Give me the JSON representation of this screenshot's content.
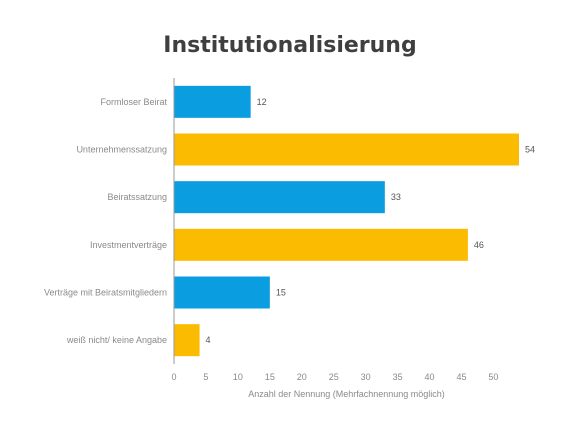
{
  "chart_data": {
    "type": "bar",
    "orientation": "horizontal",
    "title": "Institutionalisierung",
    "xlabel": "Anzahl der Nennung (Mehrfachnennung möglich)",
    "ylabel": "",
    "categories": [
      "Formloser Beirat",
      "Unternehmenssatzung",
      "Beiratssatzung",
      "Investmentverträge",
      "Verträge mit Beiratsmitgliedern",
      "weiß nicht/ keine Angabe"
    ],
    "values": [
      12,
      54,
      33,
      46,
      15,
      4
    ],
    "value_labels": [
      "12",
      "54",
      "33",
      "46",
      "15",
      "4"
    ],
    "bar_colors": [
      "#0a9de0",
      "#fbbb00",
      "#0a9de0",
      "#fbbb00",
      "#0a9de0",
      "#fbbb00"
    ],
    "xlim": [
      0,
      54
    ],
    "xticks": [
      0,
      5,
      10,
      15,
      20,
      25,
      30,
      35,
      40,
      45,
      50
    ],
    "xtick_labels": [
      "0",
      "5",
      "10",
      "15",
      "20",
      "25",
      "30",
      "35",
      "40",
      "45",
      "50"
    ],
    "grid": false,
    "legend": "none"
  }
}
